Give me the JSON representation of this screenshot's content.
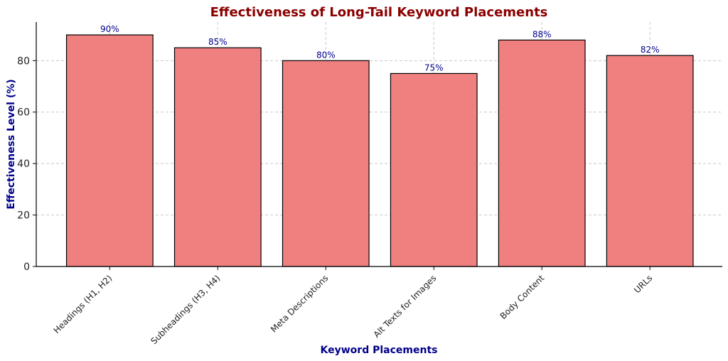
{
  "chart_data": {
    "type": "bar",
    "title": "Effectiveness of Long-Tail Keyword Placements",
    "xlabel": "Keyword Placements",
    "ylabel": "Effectiveness Level (%)",
    "categories": [
      "Headings (H1, H2)",
      "Subheadings (H3, H4)",
      "Meta Descriptions",
      "Alt Texts for Images",
      "Body Content",
      "URLs"
    ],
    "values": [
      90,
      85,
      80,
      75,
      88,
      82
    ],
    "data_labels": [
      "90%",
      "85%",
      "80%",
      "75%",
      "88%",
      "82%"
    ],
    "ylim": [
      0,
      95
    ],
    "yticks": [
      0,
      20,
      40,
      60,
      80
    ],
    "grid": true,
    "colors": {
      "bar_fill": "#f08080",
      "bar_edge": "#000000",
      "title": "#8b0000",
      "axis_label": "#00008b",
      "data_label": "#00008b",
      "grid": "#c8c8c8"
    }
  }
}
